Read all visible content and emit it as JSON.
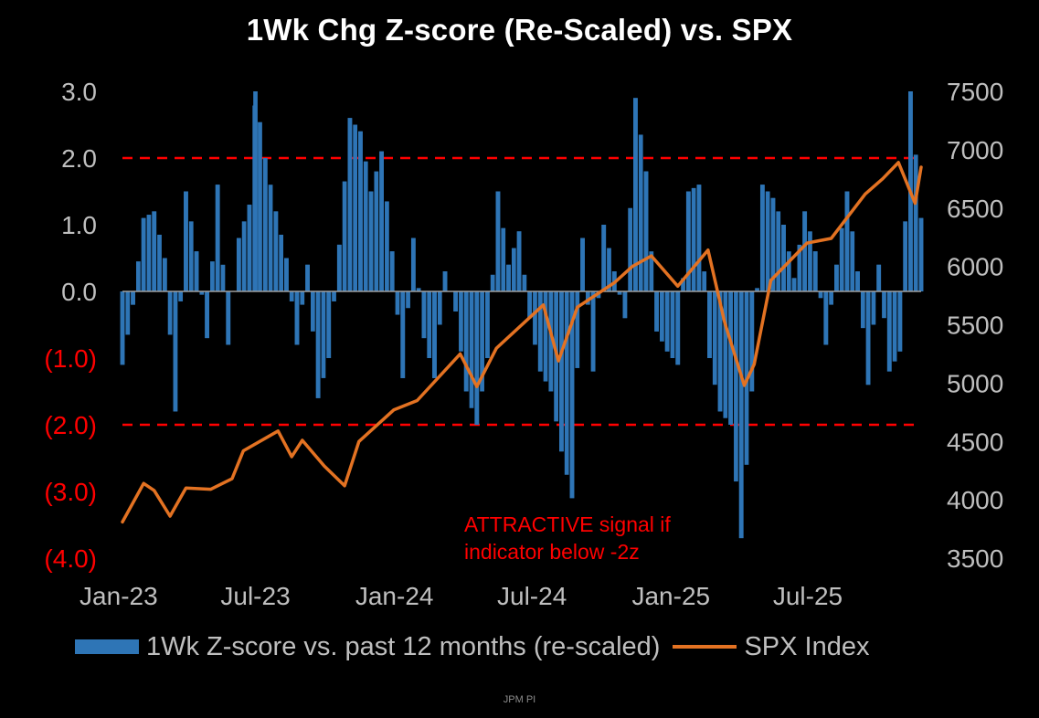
{
  "chart_data": {
    "type": "bar+line",
    "title": "1Wk Chg Z-score (Re-Scaled)  vs. SPX",
    "x_tick_labels": [
      "Jan-23",
      "Jul-23",
      "Jan-24",
      "Jul-24",
      "Jan-25",
      "Jul-25"
    ],
    "y_left": {
      "ylim": [
        -4,
        3
      ],
      "tick_values": [
        3,
        2,
        1,
        0,
        -1,
        -2,
        -3,
        -4
      ],
      "tick_labels": [
        "3.0",
        "2.0",
        "1.0",
        "0.0",
        "(1.0)",
        "(2.0)",
        "(3.0)",
        "(4.0)"
      ]
    },
    "y_right": {
      "ylim": [
        3500,
        7500
      ],
      "tick_labels": [
        "7500",
        "7000",
        "6500",
        "6000",
        "5500",
        "5000",
        "4500",
        "4000",
        "3500"
      ]
    },
    "x_range": [
      "2023-01-06",
      "2025-11-28"
    ],
    "threshold_lines": [
      {
        "value": 2.0,
        "color": "#ff0000",
        "style": "dashed"
      },
      {
        "value": -2.0,
        "color": "#ff0000",
        "style": "dashed"
      }
    ],
    "annotation": [
      "ATTRACTIVE signal if",
      "indicator below -2z"
    ],
    "series": [
      {
        "name": "1Wk Z-score vs. past 12 months (re-scaled)",
        "type": "bar",
        "axis": "left",
        "color": "#2e75b6",
        "points": [
          [
            "2023-01-06",
            -1.1
          ],
          [
            "2023-01-20",
            -0.2
          ],
          [
            "2023-02-03",
            1.1
          ],
          [
            "2023-02-17",
            1.2
          ],
          [
            "2023-03-03",
            0.5
          ],
          [
            "2023-03-17",
            -1.8
          ],
          [
            "2023-03-31",
            1.5
          ],
          [
            "2023-04-14",
            0.6
          ],
          [
            "2023-04-28",
            -0.7
          ],
          [
            "2023-05-12",
            1.6
          ],
          [
            "2023-05-26",
            -0.8
          ],
          [
            "2023-06-09",
            0.8
          ],
          [
            "2023-06-23",
            1.3
          ],
          [
            "2023-07-01",
            3.0
          ],
          [
            "2023-07-14",
            2.0
          ],
          [
            "2023-07-28",
            1.2
          ],
          [
            "2023-08-11",
            0.5
          ],
          [
            "2023-08-25",
            -0.8
          ],
          [
            "2023-09-08",
            0.4
          ],
          [
            "2023-09-22",
            -1.6
          ],
          [
            "2023-10-06",
            -1.0
          ],
          [
            "2023-10-20",
            0.7
          ],
          [
            "2023-11-03",
            2.6
          ],
          [
            "2023-11-17",
            2.4
          ],
          [
            "2023-12-01",
            1.5
          ],
          [
            "2023-12-15",
            2.1
          ],
          [
            "2023-12-29",
            0.6
          ],
          [
            "2024-01-12",
            -1.3
          ],
          [
            "2024-01-26",
            0.8
          ],
          [
            "2024-02-09",
            -0.7
          ],
          [
            "2024-02-23",
            -1.3
          ],
          [
            "2024-03-08",
            0.3
          ],
          [
            "2024-03-22",
            -0.3
          ],
          [
            "2024-04-05",
            -1.5
          ],
          [
            "2024-04-19",
            -2.0
          ],
          [
            "2024-05-03",
            -1.0
          ],
          [
            "2024-05-17",
            1.5
          ],
          [
            "2024-05-31",
            0.4
          ],
          [
            "2024-06-14",
            0.9
          ],
          [
            "2024-06-28",
            -0.4
          ],
          [
            "2024-07-12",
            -1.2
          ],
          [
            "2024-07-26",
            -1.5
          ],
          [
            "2024-08-09",
            -2.4
          ],
          [
            "2024-08-23",
            -3.1
          ],
          [
            "2024-09-06",
            0.8
          ],
          [
            "2024-09-20",
            -1.2
          ],
          [
            "2024-10-04",
            1.0
          ],
          [
            "2024-10-18",
            0.3
          ],
          [
            "2024-11-01",
            -0.4
          ],
          [
            "2024-11-15",
            2.9
          ],
          [
            "2024-11-29",
            1.8
          ],
          [
            "2024-12-13",
            -0.6
          ],
          [
            "2024-12-27",
            -0.9
          ],
          [
            "2025-01-10",
            -1.1
          ],
          [
            "2025-01-24",
            1.5
          ],
          [
            "2025-02-07",
            1.6
          ],
          [
            "2025-02-21",
            -1.0
          ],
          [
            "2025-03-07",
            -1.8
          ],
          [
            "2025-03-21",
            -2.0
          ],
          [
            "2025-04-04",
            -3.7
          ],
          [
            "2025-04-18",
            -1.5
          ],
          [
            "2025-05-02",
            1.6
          ],
          [
            "2025-05-16",
            1.4
          ],
          [
            "2025-05-30",
            1.0
          ],
          [
            "2025-06-13",
            0.2
          ],
          [
            "2025-06-27",
            1.2
          ],
          [
            "2025-07-11",
            0.6
          ],
          [
            "2025-07-25",
            -0.8
          ],
          [
            "2025-08-08",
            0.4
          ],
          [
            "2025-08-22",
            1.5
          ],
          [
            "2025-09-05",
            0.3
          ],
          [
            "2025-09-19",
            -1.4
          ],
          [
            "2025-10-03",
            0.4
          ],
          [
            "2025-10-17",
            -1.2
          ],
          [
            "2025-10-31",
            -0.9
          ],
          [
            "2025-11-14",
            3.0
          ],
          [
            "2025-11-28",
            1.1
          ]
        ]
      },
      {
        "name": "SPX Index",
        "type": "line",
        "axis": "right",
        "color": "#e37222",
        "points": [
          [
            "2023-01-06",
            3810
          ],
          [
            "2023-02-03",
            4140
          ],
          [
            "2023-02-17",
            4080
          ],
          [
            "2023-03-10",
            3860
          ],
          [
            "2023-03-31",
            4100
          ],
          [
            "2023-05-03",
            4090
          ],
          [
            "2023-05-31",
            4180
          ],
          [
            "2023-06-15",
            4420
          ],
          [
            "2023-07-31",
            4590
          ],
          [
            "2023-08-18",
            4370
          ],
          [
            "2023-09-01",
            4510
          ],
          [
            "2023-09-30",
            4290
          ],
          [
            "2023-10-27",
            4120
          ],
          [
            "2023-11-15",
            4500
          ],
          [
            "2023-12-31",
            4770
          ],
          [
            "2024-01-31",
            4850
          ],
          [
            "2024-03-28",
            5250
          ],
          [
            "2024-04-19",
            4970
          ],
          [
            "2024-05-15",
            5300
          ],
          [
            "2024-07-16",
            5670
          ],
          [
            "2024-08-05",
            5190
          ],
          [
            "2024-08-30",
            5650
          ],
          [
            "2024-10-18",
            5860
          ],
          [
            "2024-11-11",
            6000
          ],
          [
            "2024-12-06",
            6090
          ],
          [
            "2025-01-10",
            5830
          ],
          [
            "2025-02-19",
            6140
          ],
          [
            "2025-03-13",
            5520
          ],
          [
            "2025-04-08",
            4980
          ],
          [
            "2025-04-21",
            5160
          ],
          [
            "2025-05-13",
            5880
          ],
          [
            "2025-06-30",
            6200
          ],
          [
            "2025-08-01",
            6240
          ],
          [
            "2025-09-15",
            6620
          ],
          [
            "2025-10-08",
            6750
          ],
          [
            "2025-10-29",
            6890
          ],
          [
            "2025-11-20",
            6540
          ],
          [
            "2025-11-28",
            6850
          ]
        ]
      }
    ]
  },
  "source": "JPM PI"
}
